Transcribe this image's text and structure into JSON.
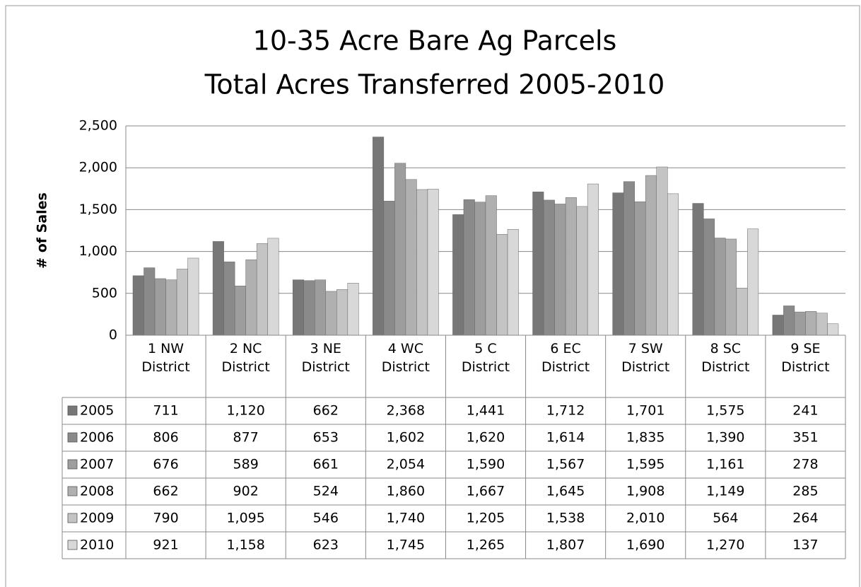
{
  "chart_data": {
    "type": "bar",
    "title": "10-35 Acre Bare Ag Parcels",
    "subtitle": "Total Acres Transferred 2005-2010",
    "y_label": "# of Sales",
    "categories": [
      "1 NW District",
      "2 NC District",
      "3 NE District",
      "4 WC District",
      "5 C District",
      "6 EC District",
      "7 SW District",
      "8 SC District",
      "9 SE District"
    ],
    "series": [
      {
        "name": "2005",
        "color": "#777777",
        "values": [
          711,
          1120,
          662,
          2368,
          1441,
          1712,
          1701,
          1575,
          241
        ],
        "value_labels": [
          "711",
          "1,120",
          "662",
          "2,368",
          "1,441",
          "1,712",
          "1,701",
          "1,575",
          "241"
        ]
      },
      {
        "name": "2006",
        "color": "#8a8a8a",
        "values": [
          806,
          877,
          653,
          1602,
          1620,
          1614,
          1835,
          1390,
          351
        ],
        "value_labels": [
          "806",
          "877",
          "653",
          "1,602",
          "1,620",
          "1,614",
          "1,835",
          "1,390",
          "351"
        ]
      },
      {
        "name": "2007",
        "color": "#9d9d9d",
        "values": [
          676,
          589,
          661,
          2054,
          1590,
          1567,
          1595,
          1161,
          278
        ],
        "value_labels": [
          "676",
          "589",
          "661",
          "2,054",
          "1,590",
          "1,567",
          "1,595",
          "1,161",
          "278"
        ]
      },
      {
        "name": "2008",
        "color": "#b0b0b0",
        "values": [
          662,
          902,
          524,
          1860,
          1667,
          1645,
          1908,
          1149,
          285
        ],
        "value_labels": [
          "662",
          "902",
          "524",
          "1,860",
          "1,667",
          "1,645",
          "1,908",
          "1,149",
          "285"
        ]
      },
      {
        "name": "2009",
        "color": "#c4c4c4",
        "values": [
          790,
          1095,
          546,
          1740,
          1205,
          1538,
          2010,
          564,
          264
        ],
        "value_labels": [
          "790",
          "1,095",
          "546",
          "1,740",
          "1,205",
          "1,538",
          "2,010",
          "564",
          "264"
        ]
      },
      {
        "name": "2010",
        "color": "#d8d8d8",
        "values": [
          921,
          1158,
          623,
          1745,
          1265,
          1807,
          1690,
          1270,
          137
        ],
        "value_labels": [
          "921",
          "1,158",
          "623",
          "1,745",
          "1,265",
          "1,807",
          "1,690",
          "1,270",
          "137"
        ]
      }
    ],
    "ylim": [
      0,
      2500
    ],
    "yticks": [
      0,
      500,
      {
        "value": 1000,
        "label": "1,000"
      },
      {
        "value": 1500,
        "label": "1,500"
      },
      {
        "value": 2000,
        "label": "2,000"
      },
      {
        "value": 2500,
        "label": "2,500"
      }
    ],
    "grid": true
  }
}
